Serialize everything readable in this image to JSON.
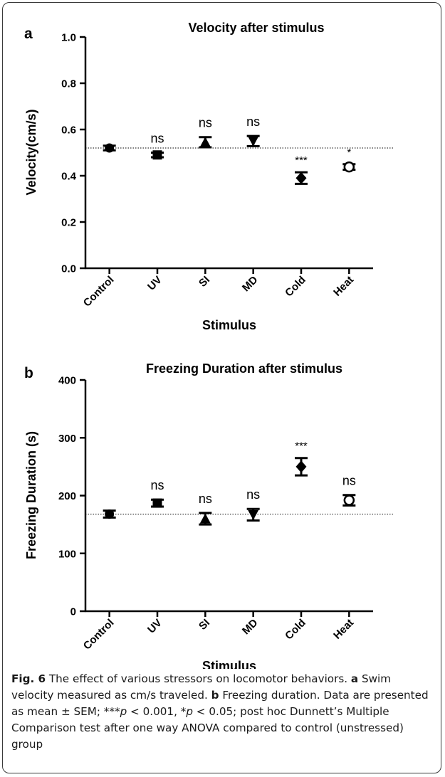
{
  "chart_data": [
    {
      "panel": "a",
      "type": "scatter",
      "title": "Velocity after stimulus",
      "xlabel": "Stimulus",
      "ylabel": "Velocity(cm/s)",
      "categories": [
        "Control",
        "UV",
        "SI",
        "MD",
        "Cold",
        "Heat"
      ],
      "ylim": [
        0,
        1.0
      ],
      "yticks": [
        "0.0",
        "0.2",
        "0.4",
        "0.6",
        "0.8",
        "1.0"
      ],
      "series": [
        {
          "mean": [
            0.52,
            0.49,
            0.545,
            0.55,
            0.39,
            0.438
          ],
          "sem": [
            0.01,
            0.01,
            0.022,
            0.022,
            0.025,
            0.012
          ],
          "markers": [
            "circle",
            "square",
            "triangle-up",
            "triangle-down",
            "diamond",
            "circle-open"
          ]
        }
      ],
      "significance": [
        "",
        "ns",
        "ns",
        "ns",
        "***",
        "*"
      ],
      "reference_line": 0.52,
      "grid": false
    },
    {
      "panel": "b",
      "type": "scatter",
      "title": "Freezing Duration after stimulus",
      "xlabel": "Stimulus",
      "ylabel": "Freezing Duration (s)",
      "categories": [
        "Control",
        "UV",
        "SI",
        "MD",
        "Cold",
        "Heat"
      ],
      "ylim": [
        0,
        400
      ],
      "yticks": [
        "0",
        "100",
        "200",
        "300",
        "400"
      ],
      "series": [
        {
          "mean": [
            168,
            187,
            160,
            167,
            250,
            192
          ],
          "sem": [
            6,
            6,
            10,
            10,
            15,
            9
          ],
          "markers": [
            "circle",
            "square",
            "triangle-up",
            "triangle-down",
            "diamond",
            "circle-open"
          ]
        }
      ],
      "significance": [
        "",
        "ns",
        "ns",
        "ns",
        "***",
        "ns"
      ],
      "reference_line": 168,
      "grid": false
    }
  ],
  "caption": {
    "label": "Fig. 6",
    "text_1": "The effect of various stressors on locomotor behaviors. ",
    "a_label": "a",
    "text_2": " Swim velocity measured as cm/s traveled. ",
    "b_label": "b",
    "text_3": " Freezing duration. Data are presented as mean ± SEM; ***",
    "p1": "p",
    "text_4": " < 0.001, *",
    "p2": "p",
    "text_5": " < 0.05; post hoc Dunnett’s Multiple Comparison test after one way ANOVA compared to control (unstressed) group"
  }
}
